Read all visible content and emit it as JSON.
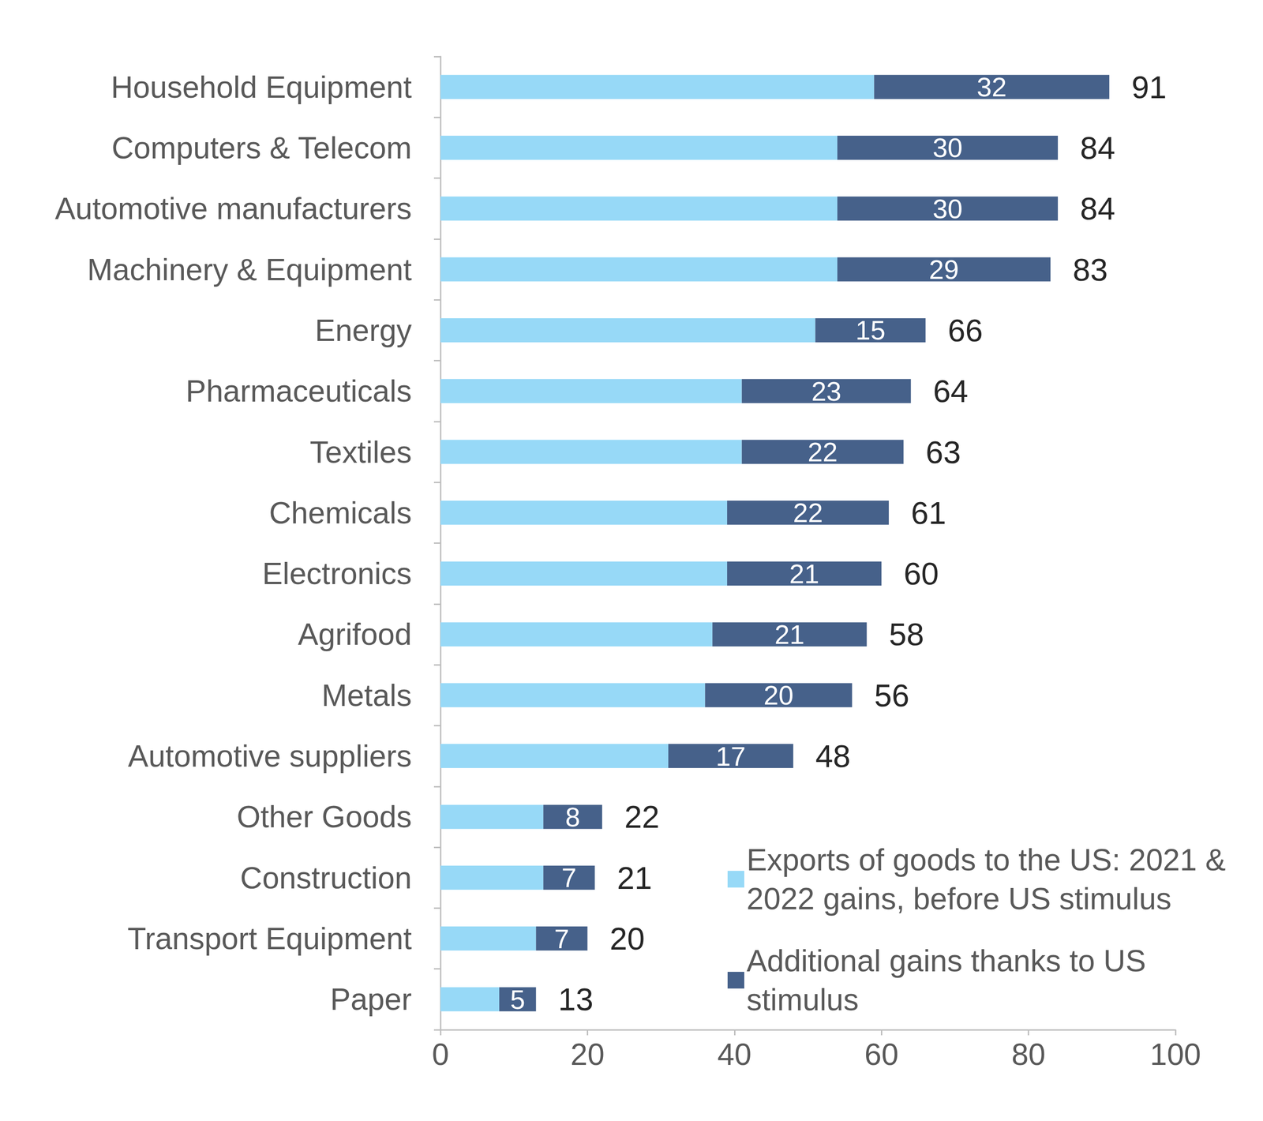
{
  "chart_data": {
    "type": "bar",
    "orientation": "horizontal",
    "stacked": true,
    "categories": [
      "Household Equipment",
      "Computers & Telecom",
      "Automotive manufacturers",
      "Machinery & Equipment",
      "Energy",
      "Pharmaceuticals",
      "Textiles",
      "Chemicals",
      "Electronics",
      "Agrifood",
      "Metals",
      "Automotive suppliers",
      "Other Goods",
      "Construction",
      "Transport Equipment",
      "Paper"
    ],
    "series": [
      {
        "name": "Exports of goods to the US: 2021 & 2022 gains, before US stimulus",
        "color": "#97d9f7",
        "data_labels": false,
        "values": [
          59,
          54,
          54,
          54,
          51,
          41,
          41,
          39,
          39,
          37,
          36,
          31,
          14,
          14,
          13,
          8
        ]
      },
      {
        "name": "Additional gains thanks to US stimulus",
        "color": "#46618a",
        "data_labels": true,
        "values": [
          32,
          30,
          30,
          29,
          15,
          23,
          22,
          22,
          21,
          21,
          20,
          17,
          8,
          7,
          7,
          5
        ]
      }
    ],
    "totals": [
      91,
      84,
      84,
      83,
      66,
      64,
      63,
      61,
      60,
      58,
      56,
      48,
      22,
      21,
      20,
      13
    ],
    "xlim": [
      0,
      100
    ],
    "xticks": [
      0,
      20,
      40,
      60,
      80,
      100
    ],
    "grid": false,
    "legend": "lower right"
  }
}
